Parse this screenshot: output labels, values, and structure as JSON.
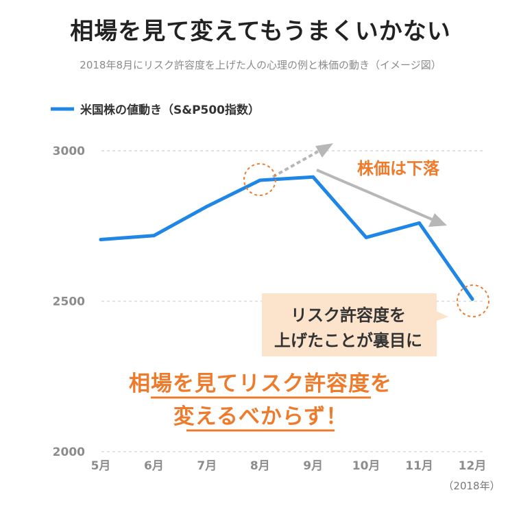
{
  "title": "相場を見て変えてもうまくいかない",
  "subtitle": "2018年8月にリスク許容度を上げた人の心理の例と株価の動き（イメージ図）",
  "colors": {
    "series": "#1f86e6",
    "accent": "#ee7b2c",
    "arrow": "#b7b7b7",
    "bubble": "#fbe3cc",
    "grid": "#d9d9d9"
  },
  "chart_data": {
    "type": "line",
    "legend": "米国株の値動き（S&P500指数）",
    "categories": [
      "5月",
      "6月",
      "7月",
      "8月",
      "9月",
      "10月",
      "11月",
      "12月"
    ],
    "series": [
      {
        "name": "米国株の値動き（S&P500指数）",
        "values": [
          2705,
          2718,
          2815,
          2902,
          2913,
          2712,
          2760,
          2507
        ]
      }
    ],
    "yticks": [
      "3000",
      "2500",
      "2000"
    ],
    "ylim": [
      2000,
      3000
    ],
    "year_note": "（2018年）",
    "grid": true,
    "annotations": {
      "down_label": "株価は下落",
      "bubble_lines": [
        "リスク許容度を",
        "上げたことが裏目に"
      ],
      "message_lines": [
        "相場を見てリスク許容度を",
        "変えるべからず！"
      ]
    }
  }
}
